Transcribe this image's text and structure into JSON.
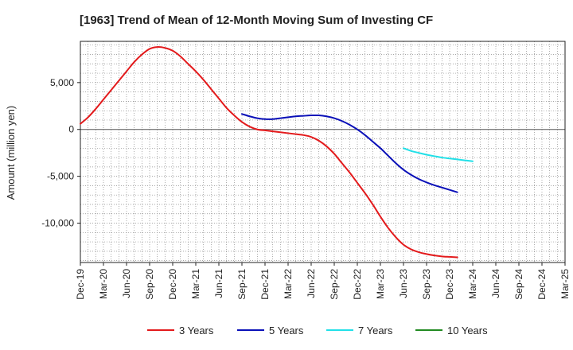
{
  "chart_data": {
    "type": "line",
    "title": "[1963]  Trend of Mean of 12-Month Moving Sum of Investing CF",
    "xlabel": "",
    "ylabel": "Amount (million yen)",
    "ylim": [
      -14200,
      9400
    ],
    "yticks": [
      5000,
      0,
      -5000,
      -10000
    ],
    "ytick_labels": [
      "5,000",
      "0",
      "-5,000",
      "-10,000"
    ],
    "x_tick_labels": [
      "Dec-19",
      "Mar-20",
      "Jun-20",
      "Sep-20",
      "Dec-20",
      "Mar-21",
      "Jun-21",
      "Sep-21",
      "Dec-21",
      "Mar-22",
      "Jun-22",
      "Sep-22",
      "Dec-22",
      "Mar-23",
      "Jun-23",
      "Sep-23",
      "Dec-23",
      "Mar-24",
      "Jun-24",
      "Sep-24",
      "Dec-24",
      "Mar-25"
    ],
    "x_start": "Dec-19",
    "months_total": 63,
    "grid": true,
    "legend_position": "bottom",
    "series": [
      {
        "name": "3 Years",
        "color": "#e31a1c",
        "start_month": 0,
        "values": [
          600,
          1300,
          2200,
          3200,
          4200,
          5200,
          6200,
          7200,
          8000,
          8600,
          8800,
          8700,
          8400,
          7800,
          7000,
          6200,
          5300,
          4300,
          3300,
          2300,
          1500,
          800,
          300,
          0,
          -100,
          -200,
          -300,
          -400,
          -500,
          -600,
          -800,
          -1200,
          -1800,
          -2600,
          -3600,
          -4600,
          -5700,
          -6800,
          -8000,
          -9300,
          -10500,
          -11500,
          -12300,
          -12800,
          -13100,
          -13300,
          -13450,
          -13550,
          -13600,
          -13650
        ]
      },
      {
        "name": "5 Years",
        "color": "#0a10b8",
        "start_month": 21,
        "values": [
          1650,
          1400,
          1200,
          1100,
          1100,
          1200,
          1300,
          1400,
          1450,
          1500,
          1500,
          1400,
          1200,
          900,
          500,
          0,
          -600,
          -1300,
          -2000,
          -2800,
          -3600,
          -4300,
          -4850,
          -5300,
          -5650,
          -5950,
          -6200,
          -6450,
          -6700
        ]
      },
      {
        "name": "7 Years",
        "color": "#22e0e8",
        "start_month": 42,
        "values": [
          -2000,
          -2300,
          -2500,
          -2700,
          -2850,
          -3000,
          -3100,
          -3200,
          -3300,
          -3400
        ]
      },
      {
        "name": "10 Years",
        "color": "#228b22",
        "start_month": 0,
        "values": []
      }
    ]
  }
}
